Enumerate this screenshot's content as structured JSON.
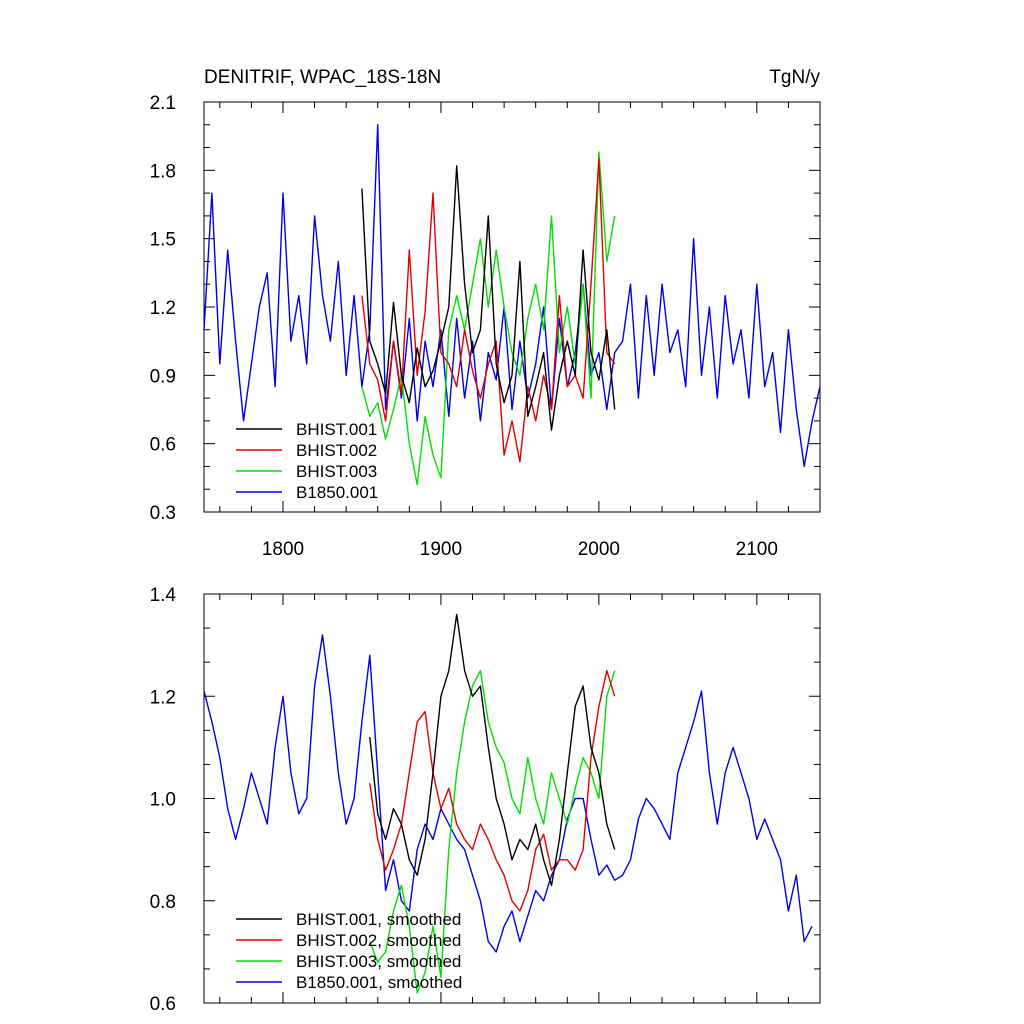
{
  "header": {
    "title_left": "DENITRIF, WPAC_18S-18N",
    "title_right": "TgN/y"
  },
  "colors": {
    "BHIST.001": "#000000",
    "BHIST.002": "#e00000",
    "BHIST.003": "#00e000",
    "B1850.001": "#0000e6"
  },
  "chart_data": [
    {
      "type": "line",
      "panel": "top",
      "xlim": [
        1750,
        2140
      ],
      "ylim": [
        0.3,
        2.1
      ],
      "xticks": [
        1800,
        1900,
        2000,
        2100
      ],
      "xtick_labels": [
        "1800",
        "1900",
        "2000",
        "2100"
      ],
      "yticks": [
        0.3,
        0.6,
        0.9,
        1.2,
        1.5,
        1.8,
        2.1
      ],
      "ytick_labels": [
        "0.3",
        "0.6",
        "0.9",
        "1.2",
        "1.5",
        "1.8",
        "2.1"
      ],
      "legend_position": "lower-left",
      "series": [
        {
          "name": "BHIST.001",
          "x": [
            1850,
            1855,
            1860,
            1865,
            1870,
            1875,
            1880,
            1885,
            1890,
            1895,
            1900,
            1905,
            1910,
            1915,
            1920,
            1925,
            1930,
            1935,
            1940,
            1945,
            1950,
            1955,
            1960,
            1965,
            1970,
            1975,
            1980,
            1985,
            1990,
            1995,
            2000,
            2005,
            2010
          ],
          "values": [
            1.72,
            1.05,
            0.95,
            0.82,
            1.22,
            0.9,
            0.78,
            1.02,
            0.85,
            0.92,
            1.05,
            1.2,
            1.82,
            1.3,
            1.0,
            1.1,
            1.6,
            0.95,
            0.78,
            0.9,
            1.4,
            0.72,
            0.85,
            1.0,
            0.66,
            0.9,
            1.05,
            0.9,
            1.45,
            1.0,
            0.88,
            1.1,
            0.75
          ]
        },
        {
          "name": "BHIST.002",
          "x": [
            1850,
            1855,
            1860,
            1865,
            1870,
            1875,
            1880,
            1885,
            1890,
            1895,
            1900,
            1905,
            1910,
            1915,
            1920,
            1925,
            1930,
            1935,
            1940,
            1945,
            1950,
            1955,
            1960,
            1965,
            1970,
            1975,
            1980,
            1985,
            1990,
            1995,
            2000,
            2005,
            2010
          ],
          "values": [
            1.25,
            0.95,
            0.88,
            0.7,
            1.05,
            0.82,
            1.45,
            0.9,
            1.18,
            1.7,
            1.0,
            0.95,
            0.85,
            1.1,
            0.92,
            0.8,
            0.95,
            1.05,
            0.55,
            0.7,
            0.52,
            0.85,
            0.7,
            0.9,
            0.75,
            1.25,
            0.85,
            0.9,
            0.8,
            1.3,
            1.85,
            1.0,
            0.95
          ]
        },
        {
          "name": "BHIST.003",
          "x": [
            1850,
            1855,
            1860,
            1865,
            1870,
            1875,
            1880,
            1885,
            1890,
            1895,
            1900,
            1905,
            1910,
            1915,
            1920,
            1925,
            1930,
            1935,
            1940,
            1945,
            1950,
            1955,
            1960,
            1965,
            1970,
            1975,
            1980,
            1985,
            1990,
            1995,
            2000,
            2005,
            2010
          ],
          "values": [
            0.85,
            0.72,
            0.78,
            0.62,
            0.75,
            0.9,
            0.6,
            0.42,
            0.72,
            0.55,
            0.45,
            1.1,
            1.25,
            1.1,
            1.3,
            1.5,
            1.2,
            1.45,
            1.2,
            1.0,
            0.9,
            1.15,
            1.3,
            1.1,
            1.6,
            1.0,
            1.2,
            0.95,
            1.3,
            0.8,
            1.88,
            1.4,
            1.6
          ]
        },
        {
          "name": "B1850.001",
          "x": [
            1750,
            1755,
            1760,
            1765,
            1770,
            1775,
            1780,
            1785,
            1790,
            1795,
            1800,
            1805,
            1810,
            1815,
            1820,
            1825,
            1830,
            1835,
            1840,
            1845,
            1850,
            1855,
            1860,
            1865,
            1870,
            1875,
            1880,
            1885,
            1890,
            1895,
            1900,
            1905,
            1910,
            1915,
            1920,
            1925,
            1930,
            1935,
            1940,
            1945,
            1950,
            1955,
            1960,
            1965,
            1970,
            1975,
            1980,
            1985,
            1990,
            1995,
            2000,
            2005,
            2010,
            2015,
            2020,
            2025,
            2030,
            2035,
            2040,
            2045,
            2050,
            2055,
            2060,
            2065,
            2070,
            2075,
            2080,
            2085,
            2090,
            2095,
            2100,
            2105,
            2110,
            2115,
            2120,
            2125,
            2130,
            2135,
            2140
          ],
          "values": [
            1.1,
            1.7,
            0.95,
            1.45,
            1.05,
            0.7,
            0.95,
            1.2,
            1.35,
            0.85,
            1.7,
            1.05,
            1.25,
            0.95,
            1.6,
            1.25,
            1.05,
            1.4,
            0.9,
            1.25,
            0.85,
            1.1,
            2.0,
            0.75,
            1.05,
            0.8,
            1.15,
            0.7,
            1.05,
            0.85,
            1.1,
            0.72,
            1.15,
            0.8,
            1.05,
            0.7,
            1.0,
            0.88,
            1.2,
            0.75,
            1.05,
            0.8,
            0.95,
            1.2,
            0.75,
            1.15,
            0.85,
            1.0,
            1.3,
            0.9,
            1.0,
            0.75,
            1.0,
            1.05,
            1.3,
            0.8,
            1.25,
            0.9,
            1.3,
            1.0,
            1.1,
            0.85,
            1.5,
            0.9,
            1.2,
            0.8,
            1.25,
            0.95,
            1.1,
            0.8,
            1.3,
            0.85,
            1.0,
            0.65,
            1.1,
            0.75,
            0.5,
            0.7,
            0.85
          ]
        }
      ]
    },
    {
      "type": "line",
      "panel": "bottom",
      "xlim": [
        1750,
        2140
      ],
      "ylim": [
        0.6,
        1.4
      ],
      "xticks": [
        1800,
        1900,
        2000,
        2100
      ],
      "yticks": [
        0.6,
        0.8,
        1.0,
        1.2,
        1.4
      ],
      "ytick_labels": [
        "0.6",
        "0.8",
        "1.0",
        "1.2",
        "1.4"
      ],
      "legend_position": "lower-left",
      "series": [
        {
          "name": "BHIST.001, smoothed",
          "x": [
            1855,
            1860,
            1865,
            1870,
            1875,
            1880,
            1885,
            1890,
            1895,
            1900,
            1905,
            1910,
            1915,
            1920,
            1925,
            1930,
            1935,
            1940,
            1945,
            1950,
            1955,
            1960,
            1965,
            1970,
            1975,
            1980,
            1985,
            1990,
            1995,
            2000,
            2005,
            2010
          ],
          "values": [
            1.12,
            0.97,
            0.92,
            0.98,
            0.95,
            0.88,
            0.85,
            0.92,
            1.05,
            1.2,
            1.25,
            1.36,
            1.25,
            1.2,
            1.22,
            1.1,
            1.0,
            0.95,
            0.88,
            0.92,
            0.9,
            0.95,
            0.88,
            0.83,
            0.92,
            1.05,
            1.18,
            1.22,
            1.1,
            1.05,
            0.95,
            0.9
          ]
        },
        {
          "name": "BHIST.002, smoothed",
          "x": [
            1855,
            1860,
            1865,
            1870,
            1875,
            1880,
            1885,
            1890,
            1895,
            1900,
            1905,
            1910,
            1915,
            1920,
            1925,
            1930,
            1935,
            1940,
            1945,
            1950,
            1955,
            1960,
            1965,
            1970,
            1975,
            1980,
            1985,
            1990,
            1995,
            2000,
            2005,
            2010
          ],
          "values": [
            1.03,
            0.92,
            0.86,
            0.9,
            0.95,
            1.05,
            1.15,
            1.17,
            1.05,
            0.98,
            1.02,
            0.95,
            0.92,
            0.9,
            0.95,
            0.92,
            0.88,
            0.85,
            0.8,
            0.78,
            0.82,
            0.9,
            0.93,
            0.86,
            0.88,
            0.88,
            0.86,
            0.9,
            1.08,
            1.18,
            1.25,
            1.2
          ]
        },
        {
          "name": "BHIST.003, smoothed",
          "x": [
            1855,
            1860,
            1865,
            1870,
            1875,
            1880,
            1885,
            1890,
            1895,
            1900,
            1905,
            1910,
            1915,
            1920,
            1925,
            1930,
            1935,
            1940,
            1945,
            1950,
            1955,
            1960,
            1965,
            1970,
            1975,
            1980,
            1985,
            1990,
            1995,
            2000,
            2005,
            2010
          ],
          "values": [
            0.72,
            0.68,
            0.7,
            0.78,
            0.83,
            0.75,
            0.62,
            0.66,
            0.75,
            0.65,
            0.9,
            1.05,
            1.15,
            1.22,
            1.25,
            1.15,
            1.1,
            1.07,
            1.0,
            0.97,
            1.08,
            1.0,
            0.95,
            1.05,
            1.0,
            0.95,
            1.02,
            1.08,
            1.05,
            1.0,
            1.2,
            1.25
          ]
        },
        {
          "name": "B1850.001, smoothed",
          "x": [
            1750,
            1755,
            1760,
            1765,
            1770,
            1775,
            1780,
            1785,
            1790,
            1795,
            1800,
            1805,
            1810,
            1815,
            1820,
            1825,
            1830,
            1835,
            1840,
            1845,
            1850,
            1855,
            1860,
            1865,
            1870,
            1875,
            1880,
            1885,
            1890,
            1895,
            1900,
            1905,
            1910,
            1915,
            1920,
            1925,
            1930,
            1935,
            1940,
            1945,
            1950,
            1955,
            1960,
            1965,
            1970,
            1975,
            1980,
            1985,
            1990,
            1995,
            2000,
            2005,
            2010,
            2015,
            2020,
            2025,
            2030,
            2035,
            2040,
            2045,
            2050,
            2055,
            2060,
            2065,
            2070,
            2075,
            2080,
            2085,
            2090,
            2095,
            2100,
            2105,
            2110,
            2115,
            2120,
            2125,
            2130,
            2135
          ],
          "values": [
            1.21,
            1.15,
            1.08,
            0.98,
            0.92,
            0.98,
            1.05,
            1.0,
            0.95,
            1.1,
            1.2,
            1.05,
            0.97,
            1.0,
            1.22,
            1.32,
            1.2,
            1.05,
            0.95,
            1.0,
            1.15,
            1.28,
            1.05,
            0.82,
            0.88,
            0.8,
            0.78,
            0.9,
            0.95,
            0.92,
            0.98,
            0.95,
            0.92,
            0.9,
            0.85,
            0.8,
            0.72,
            0.7,
            0.75,
            0.78,
            0.72,
            0.77,
            0.82,
            0.8,
            0.85,
            0.88,
            0.96,
            1.0,
            1.0,
            0.92,
            0.85,
            0.87,
            0.84,
            0.85,
            0.88,
            0.96,
            1.0,
            0.98,
            0.95,
            0.92,
            1.05,
            1.1,
            1.15,
            1.21,
            1.05,
            0.95,
            1.05,
            1.1,
            1.05,
            1.0,
            0.92,
            0.96,
            0.92,
            0.88,
            0.78,
            0.85,
            0.72,
            0.75
          ]
        }
      ]
    }
  ]
}
